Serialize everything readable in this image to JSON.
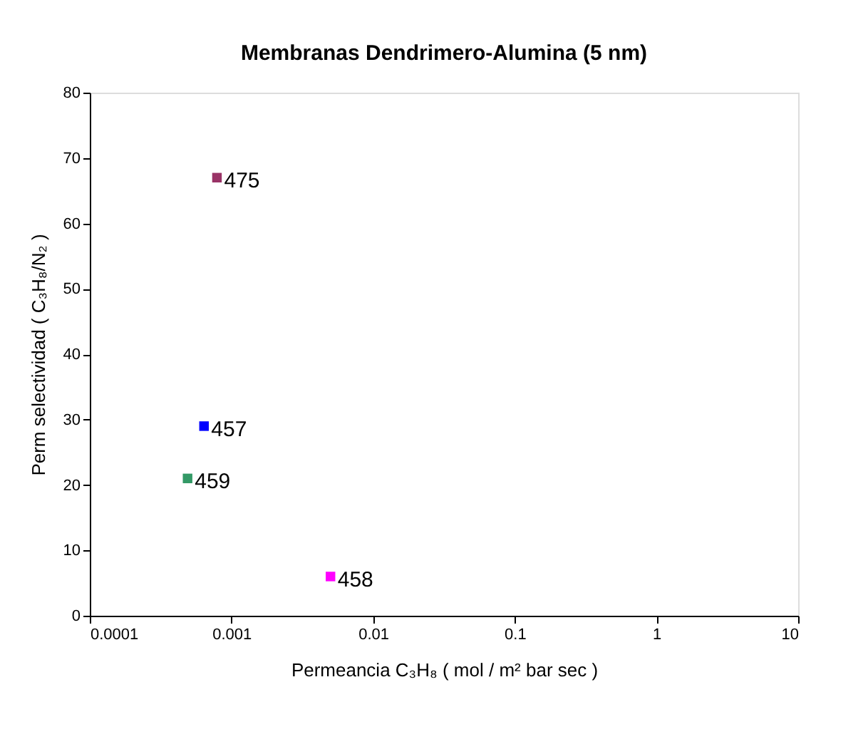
{
  "chart_data": {
    "type": "scatter",
    "title": "Membranas Dendrimero-Alumina (5 nm)",
    "xlabel": "Permeancia C₃H₈ ( mol / m² bar sec )",
    "ylabel": "Perm selectividad ( C₃H₈/N₂ )",
    "log": "x",
    "xlim": [
      0.0001,
      10
    ],
    "xticks": [
      0.0001,
      0.001,
      0.01,
      0.1,
      1,
      10
    ],
    "ylim": [
      0,
      80
    ],
    "yticks": [
      0,
      10,
      20,
      30,
      40,
      50,
      60,
      70,
      80
    ],
    "grid": false,
    "legend": false,
    "marker": "square",
    "series": [
      {
        "name": "475",
        "color": "#993366",
        "x": [
          0.00079
        ],
        "values": [
          67
        ]
      },
      {
        "name": "457",
        "color": "#0000ff",
        "x": [
          0.00064
        ],
        "values": [
          29
        ]
      },
      {
        "name": "459",
        "color": "#339966",
        "x": [
          0.00049
        ],
        "values": [
          21
        ]
      },
      {
        "name": "458",
        "color": "#ff00ff",
        "x": [
          0.005
        ],
        "values": [
          6
        ]
      }
    ]
  }
}
